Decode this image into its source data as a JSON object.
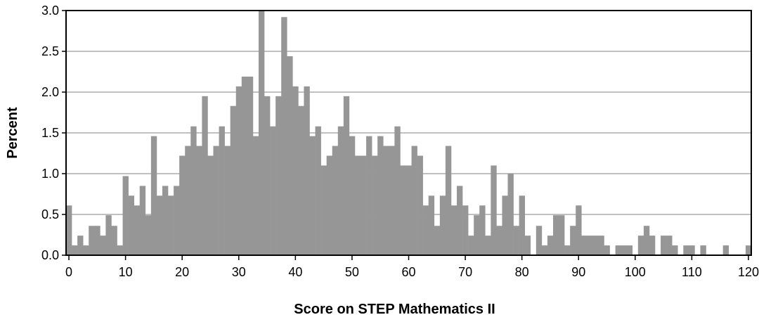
{
  "chart_data": {
    "type": "bar",
    "title": "",
    "xlabel": "Score on STEP Mathematics II",
    "ylabel": "Percent",
    "xlim": [
      0,
      120
    ],
    "ylim": [
      0,
      3.0
    ],
    "x_ticks": [
      "0",
      "10",
      "20",
      "30",
      "40",
      "50",
      "60",
      "70",
      "80",
      "90",
      "100",
      "110",
      "120"
    ],
    "y_ticks": [
      "0.0",
      "0.5",
      "1.0",
      "1.5",
      "2.0",
      "2.5",
      "3.0"
    ],
    "grid": true,
    "legend": "none",
    "bar_color": "#969696",
    "x": [
      0,
      1,
      2,
      3,
      4,
      5,
      6,
      7,
      8,
      9,
      10,
      11,
      12,
      13,
      14,
      15,
      16,
      17,
      18,
      19,
      20,
      21,
      22,
      23,
      24,
      25,
      26,
      27,
      28,
      29,
      30,
      31,
      32,
      33,
      34,
      35,
      36,
      37,
      38,
      39,
      40,
      41,
      42,
      43,
      44,
      45,
      46,
      47,
      48,
      49,
      50,
      51,
      52,
      53,
      54,
      55,
      56,
      57,
      58,
      59,
      60,
      61,
      62,
      63,
      64,
      65,
      66,
      67,
      68,
      69,
      70,
      71,
      72,
      73,
      74,
      75,
      76,
      77,
      78,
      79,
      80,
      81,
      82,
      83,
      84,
      85,
      86,
      87,
      88,
      89,
      90,
      91,
      92,
      93,
      94,
      95,
      96,
      97,
      98,
      99,
      100,
      101,
      102,
      103,
      104,
      105,
      106,
      107,
      108,
      109,
      110,
      111,
      112,
      113,
      114,
      115,
      116,
      117,
      118,
      119,
      120
    ],
    "values": [
      0.61,
      0.12,
      0.24,
      0.12,
      0.36,
      0.36,
      0.24,
      0.49,
      0.36,
      0.12,
      0.97,
      0.73,
      0.61,
      0.85,
      0.49,
      1.46,
      0.73,
      0.85,
      0.73,
      0.85,
      1.22,
      1.34,
      1.58,
      1.34,
      1.95,
      1.22,
      1.34,
      1.58,
      1.34,
      1.83,
      2.07,
      2.19,
      2.19,
      1.46,
      3.0,
      1.95,
      1.58,
      1.95,
      2.92,
      2.44,
      2.07,
      1.83,
      2.07,
      1.46,
      1.58,
      1.1,
      1.22,
      1.34,
      1.58,
      1.95,
      1.46,
      1.22,
      1.22,
      1.46,
      1.22,
      1.46,
      1.34,
      1.34,
      1.58,
      1.1,
      1.1,
      1.34,
      1.22,
      0.61,
      0.73,
      0.36,
      0.73,
      1.34,
      0.61,
      0.85,
      0.61,
      0.24,
      0.49,
      0.61,
      0.24,
      1.1,
      0.36,
      0.73,
      1.0,
      0.36,
      0.73,
      0.24,
      0.0,
      0.36,
      0.12,
      0.24,
      0.49,
      0.49,
      0.12,
      0.36,
      0.61,
      0.24,
      0.24,
      0.24,
      0.24,
      0.12,
      0.0,
      0.12,
      0.12,
      0.12,
      0.0,
      0.24,
      0.36,
      0.24,
      0.0,
      0.24,
      0.24,
      0.12,
      0.0,
      0.12,
      0.12,
      0.0,
      0.12,
      0.0,
      0.0,
      0.0,
      0.12,
      0.0,
      0.0,
      0.0,
      0.12
    ]
  }
}
